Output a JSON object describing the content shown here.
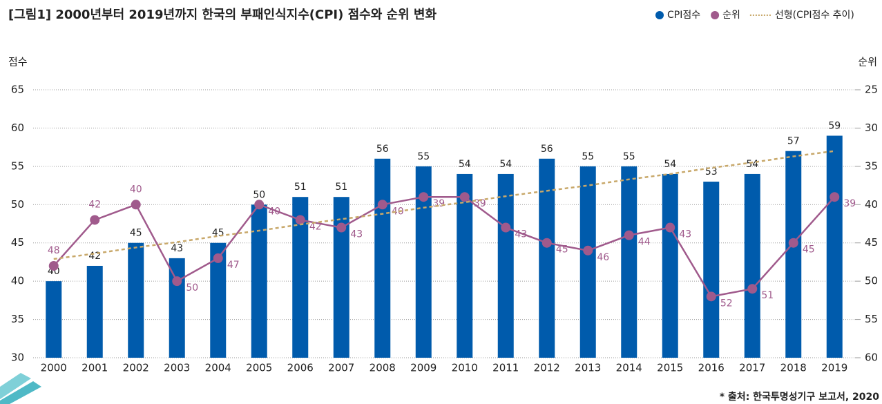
{
  "chart_data": {
    "type": "bar",
    "title": "[그림1] 2000년부터 2019년까지 한국의 부패인식지수(CPI) 점수와 순위 변화",
    "y_label": "점수",
    "y2_label": "순위",
    "source": "* 출처: 한국투명성기구 보고서, 2020",
    "categories": [
      "2000",
      "2001",
      "2002",
      "2003",
      "2004",
      "2005",
      "2006",
      "2007",
      "2008",
      "2009",
      "2010",
      "2011",
      "2012",
      "2013",
      "2014",
      "2015",
      "2016",
      "2017",
      "2018",
      "2019"
    ],
    "series": [
      {
        "name": "CPI점수",
        "type": "bar",
        "color": "#005bac",
        "values": [
          40,
          42,
          45,
          43,
          45,
          50,
          51,
          51,
          56,
          55,
          54,
          54,
          56,
          55,
          55,
          54,
          53,
          54,
          57,
          59
        ]
      },
      {
        "name": "순위",
        "type": "line",
        "axis": "y2",
        "color": "#a05a8c",
        "values": [
          48,
          42,
          40,
          50,
          47,
          40,
          42,
          43,
          40,
          39,
          39,
          43,
          45,
          46,
          44,
          43,
          52,
          51,
          45,
          39
        ]
      },
      {
        "name": "선형(CPI점수 추이)",
        "type": "line",
        "dashed": true,
        "color": "#c8a86a",
        "values": [
          42.9,
          43.6,
          44.4,
          45.1,
          45.9,
          46.6,
          47.4,
          48.1,
          48.8,
          49.6,
          50.3,
          51.1,
          51.8,
          52.5,
          53.3,
          54.0,
          54.8,
          55.5,
          56.3,
          57.0
        ]
      }
    ],
    "ylim": [
      30,
      65
    ],
    "yticks": [
      30,
      35,
      40,
      45,
      50,
      55,
      60,
      65
    ],
    "y2lim": [
      60,
      25
    ],
    "y2ticks": [
      25,
      30,
      35,
      40,
      45,
      50,
      55,
      60
    ],
    "grid": true,
    "legend": "top-right"
  }
}
